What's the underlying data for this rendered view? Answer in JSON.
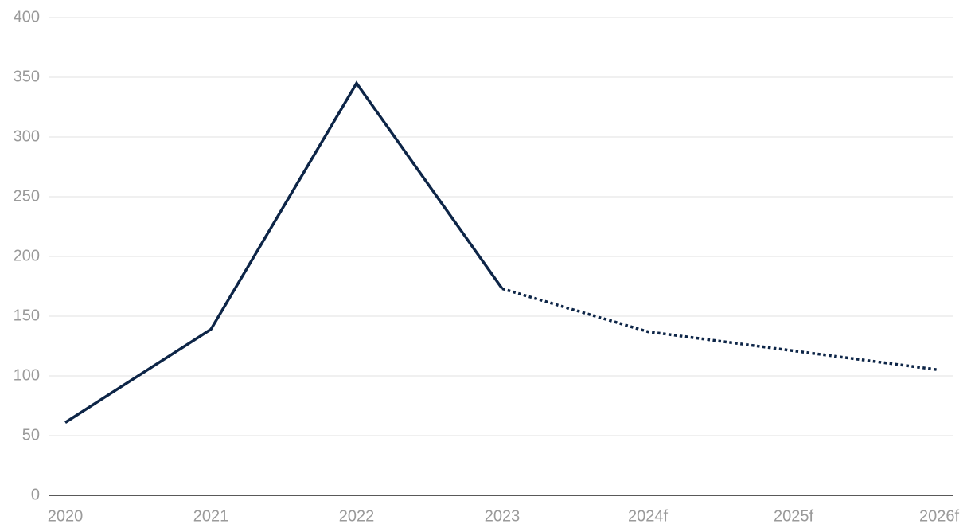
{
  "chart_data": {
    "type": "line",
    "categories": [
      "2020",
      "2021",
      "2022",
      "2023",
      "2024f",
      "2025f",
      "2026f"
    ],
    "series": [
      {
        "color": "#0d2547",
        "style": "solid",
        "values": [
          61,
          139,
          345,
          173,
          null,
          null,
          null
        ]
      },
      {
        "color": "#0d2547",
        "style": "dotted",
        "values": [
          null,
          null,
          null,
          173,
          137,
          121,
          105
        ]
      }
    ],
    "ylim": [
      0,
      400
    ],
    "yticks": [
      0,
      50,
      100,
      150,
      200,
      250,
      300,
      350,
      400
    ],
    "grid": true
  }
}
